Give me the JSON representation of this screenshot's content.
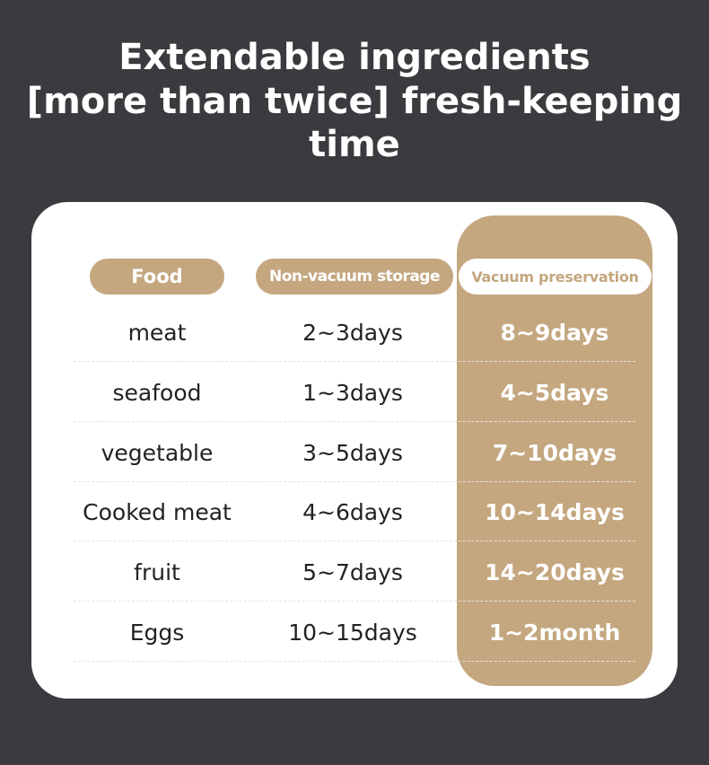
{
  "title": {
    "line1": "Extendable ingredients",
    "line2": "[more than twice] fresh-keeping time"
  },
  "colors": {
    "background": "#3b3b3f",
    "accent": "#c4a77f",
    "card": "#ffffff"
  },
  "table": {
    "headers": [
      "Food",
      "Non-vacuum storage",
      "Vacuum preservation"
    ],
    "rows": [
      [
        "meat",
        "2~3days",
        "8~9days"
      ],
      [
        "seafood",
        "1~3days",
        "4~5days"
      ],
      [
        "vegetable",
        "3~5days",
        "7~10days"
      ],
      [
        "Cooked meat",
        "4~6days",
        "10~14days"
      ],
      [
        "fruit",
        "5~7days",
        "14~20days"
      ],
      [
        "Eggs",
        "10~15days",
        "1~2month"
      ]
    ]
  }
}
